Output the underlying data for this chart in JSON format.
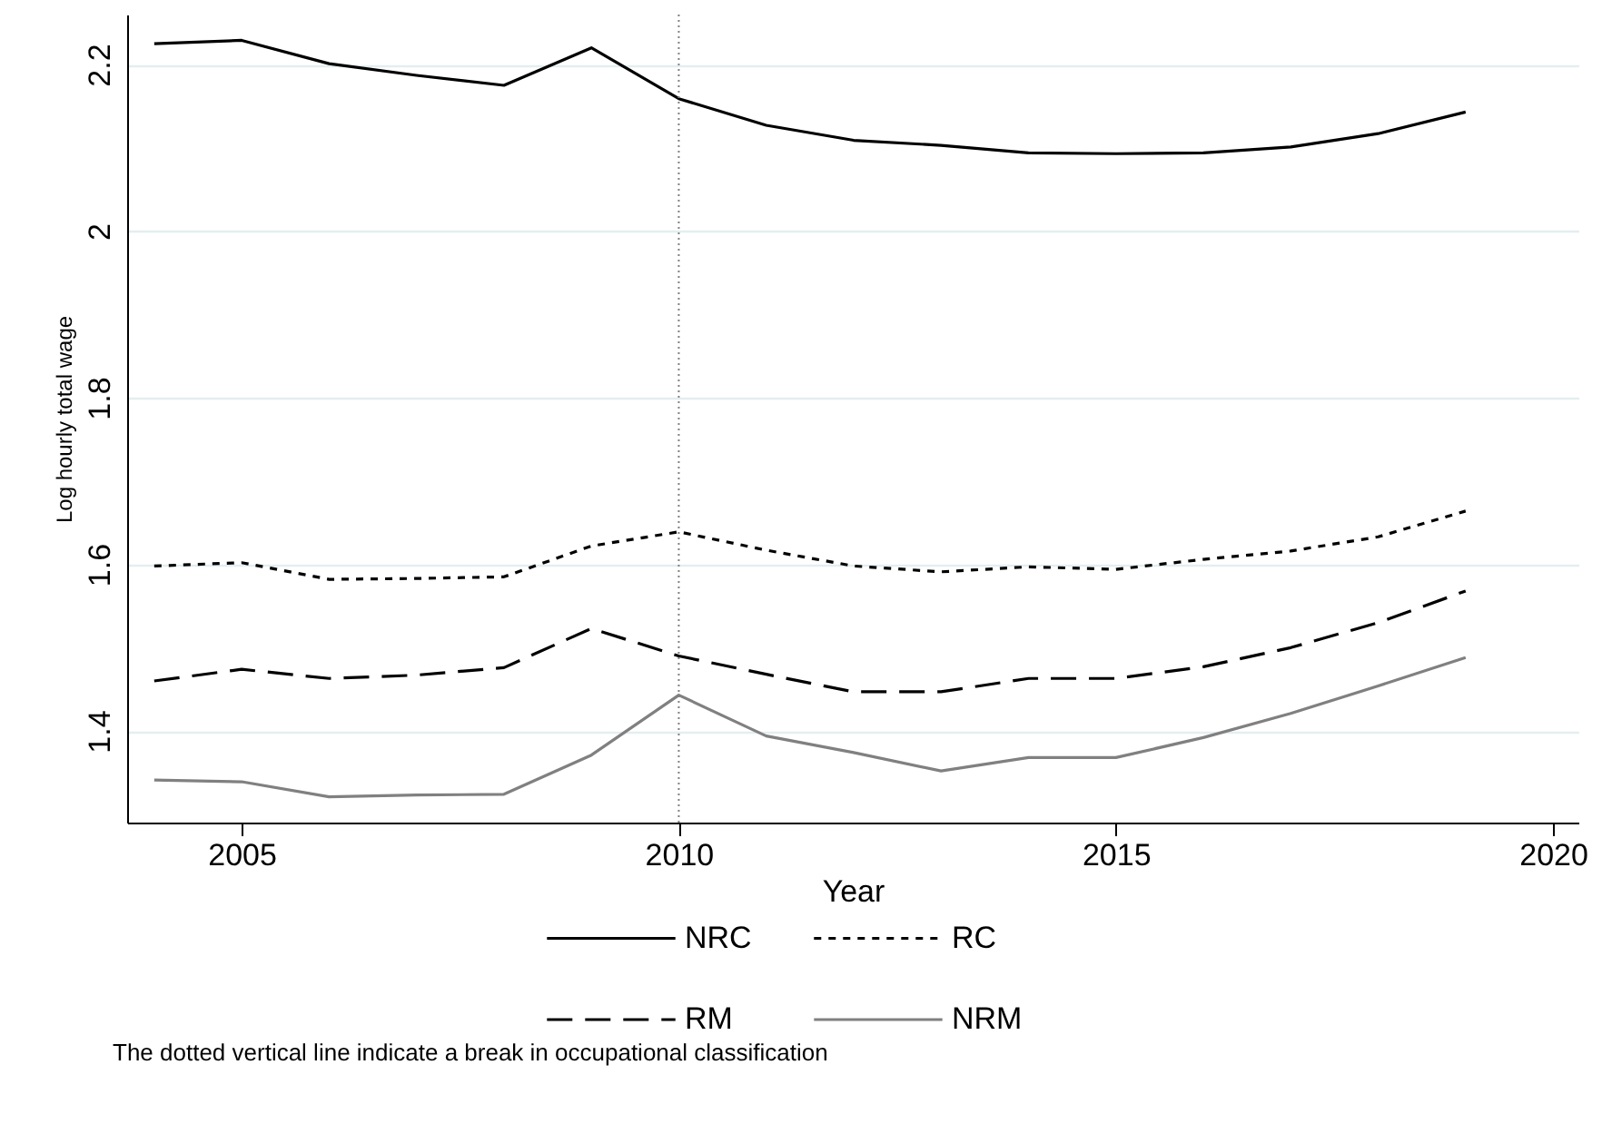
{
  "chart_data": {
    "type": "line",
    "xlabel": "Year",
    "ylabel": "Log hourly total wage",
    "x": [
      2004,
      2005,
      2006,
      2007,
      2008,
      2009,
      2010,
      2011,
      2012,
      2013,
      2014,
      2015,
      2016,
      2017,
      2018,
      2019
    ],
    "series": [
      {
        "name": "NRC",
        "color": "#000000",
        "line_style": "solid",
        "values": [
          2.225,
          2.229,
          2.201,
          2.187,
          2.175,
          2.22,
          2.159,
          2.127,
          2.109,
          2.103,
          2.094,
          2.093,
          2.094,
          2.101,
          2.117,
          2.143
        ]
      },
      {
        "name": "RC",
        "color": "#000000",
        "line_style": "dotted",
        "values": [
          1.598,
          1.602,
          1.582,
          1.583,
          1.585,
          1.622,
          1.639,
          1.617,
          1.598,
          1.591,
          1.597,
          1.594,
          1.606,
          1.616,
          1.633,
          1.664
        ]
      },
      {
        "name": "RM",
        "color": "#000000",
        "line_style": "dashed",
        "values": [
          1.46,
          1.474,
          1.463,
          1.467,
          1.476,
          1.523,
          1.49,
          1.468,
          1.447,
          1.447,
          1.463,
          1.463,
          1.477,
          1.5,
          1.53,
          1.568
        ]
      },
      {
        "name": "NRM",
        "color": "#808080",
        "line_style": "solid",
        "values": [
          1.341,
          1.339,
          1.321,
          1.323,
          1.324,
          1.371,
          1.443,
          1.394,
          1.374,
          1.352,
          1.368,
          1.368,
          1.392,
          1.421,
          1.454,
          1.488
        ]
      }
    ],
    "xlim": [
      2003.69,
      2020.29
    ],
    "xticks": [
      2005,
      2010,
      2015,
      2020
    ],
    "ylim": [
      1.29,
      2.26
    ],
    "yticks": [
      1.4,
      1.6,
      1.8,
      2,
      2.2
    ],
    "grid": "y",
    "legend": "bottom",
    "marker": "none",
    "ref_lines": [
      {
        "axis": "x",
        "value": 2010,
        "color": "#808080",
        "line_style": "dotted"
      }
    ],
    "annotations": [
      "The dotted vertical line indicate a break in occupational classification"
    ]
  }
}
